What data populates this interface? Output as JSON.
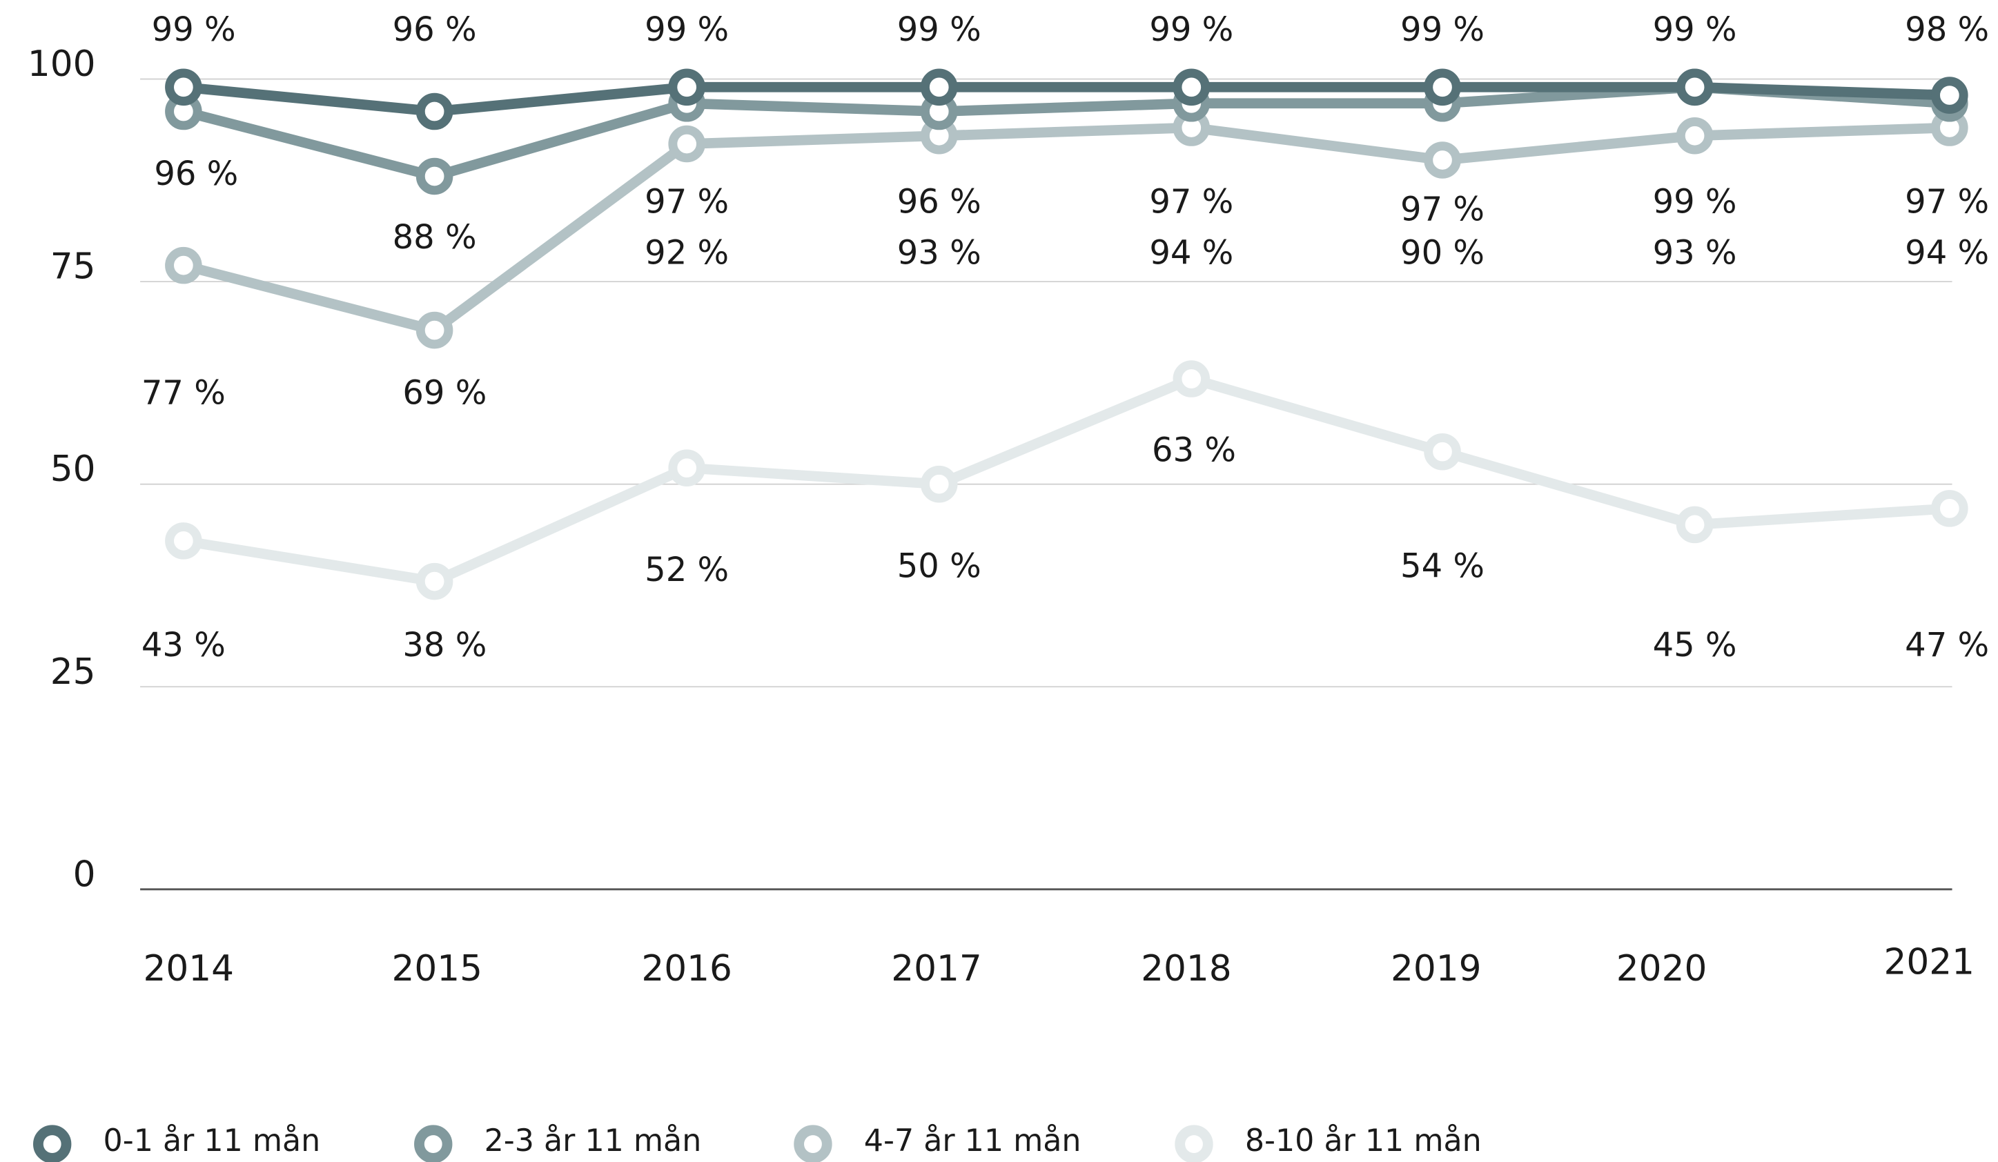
{
  "chart_data": {
    "type": "line",
    "categories": [
      "2014",
      "2015",
      "2016",
      "2017",
      "2018",
      "2019",
      "2020",
      "2021"
    ],
    "ylim": [
      0,
      100
    ],
    "yticks": [
      0,
      25,
      50,
      75,
      100
    ],
    "grid": true,
    "legend": "bottom",
    "series": [
      {
        "name": "0-1 år 11 mån",
        "color": "#557177",
        "values": [
          99,
          96,
          99,
          99,
          99,
          99,
          99,
          98
        ],
        "value_labels": [
          "99 %",
          "96 %",
          "99 %",
          "99 %",
          "99 %",
          "99 %",
          "99 %",
          "98 %"
        ]
      },
      {
        "name": "2-3 år 11 mån",
        "color": "#81999d",
        "values": [
          96,
          88,
          97,
          96,
          97,
          97,
          99,
          97
        ],
        "value_labels": [
          "96 %",
          "88 %",
          "97 %",
          "96 %",
          "97 %",
          "97 %",
          "99 %",
          "97 %"
        ]
      },
      {
        "name": "4-7 år 11 mån",
        "color": "#b3c2c5",
        "values": [
          77,
          69,
          92,
          93,
          94,
          90,
          93,
          94
        ],
        "value_labels": [
          "77 %",
          "69 %",
          "92 %",
          "93 %",
          "94 %",
          "90 %",
          "93 %",
          "94 %"
        ]
      },
      {
        "name": "8-10 år 11 mån",
        "color": "#e3e9ea",
        "values": [
          43,
          38,
          52,
          50,
          63,
          54,
          45,
          47
        ],
        "value_labels": [
          "43 %",
          "38 %",
          "52 %",
          "50 %",
          "63 %",
          "54 %",
          "45 %",
          "47 %"
        ]
      }
    ]
  }
}
